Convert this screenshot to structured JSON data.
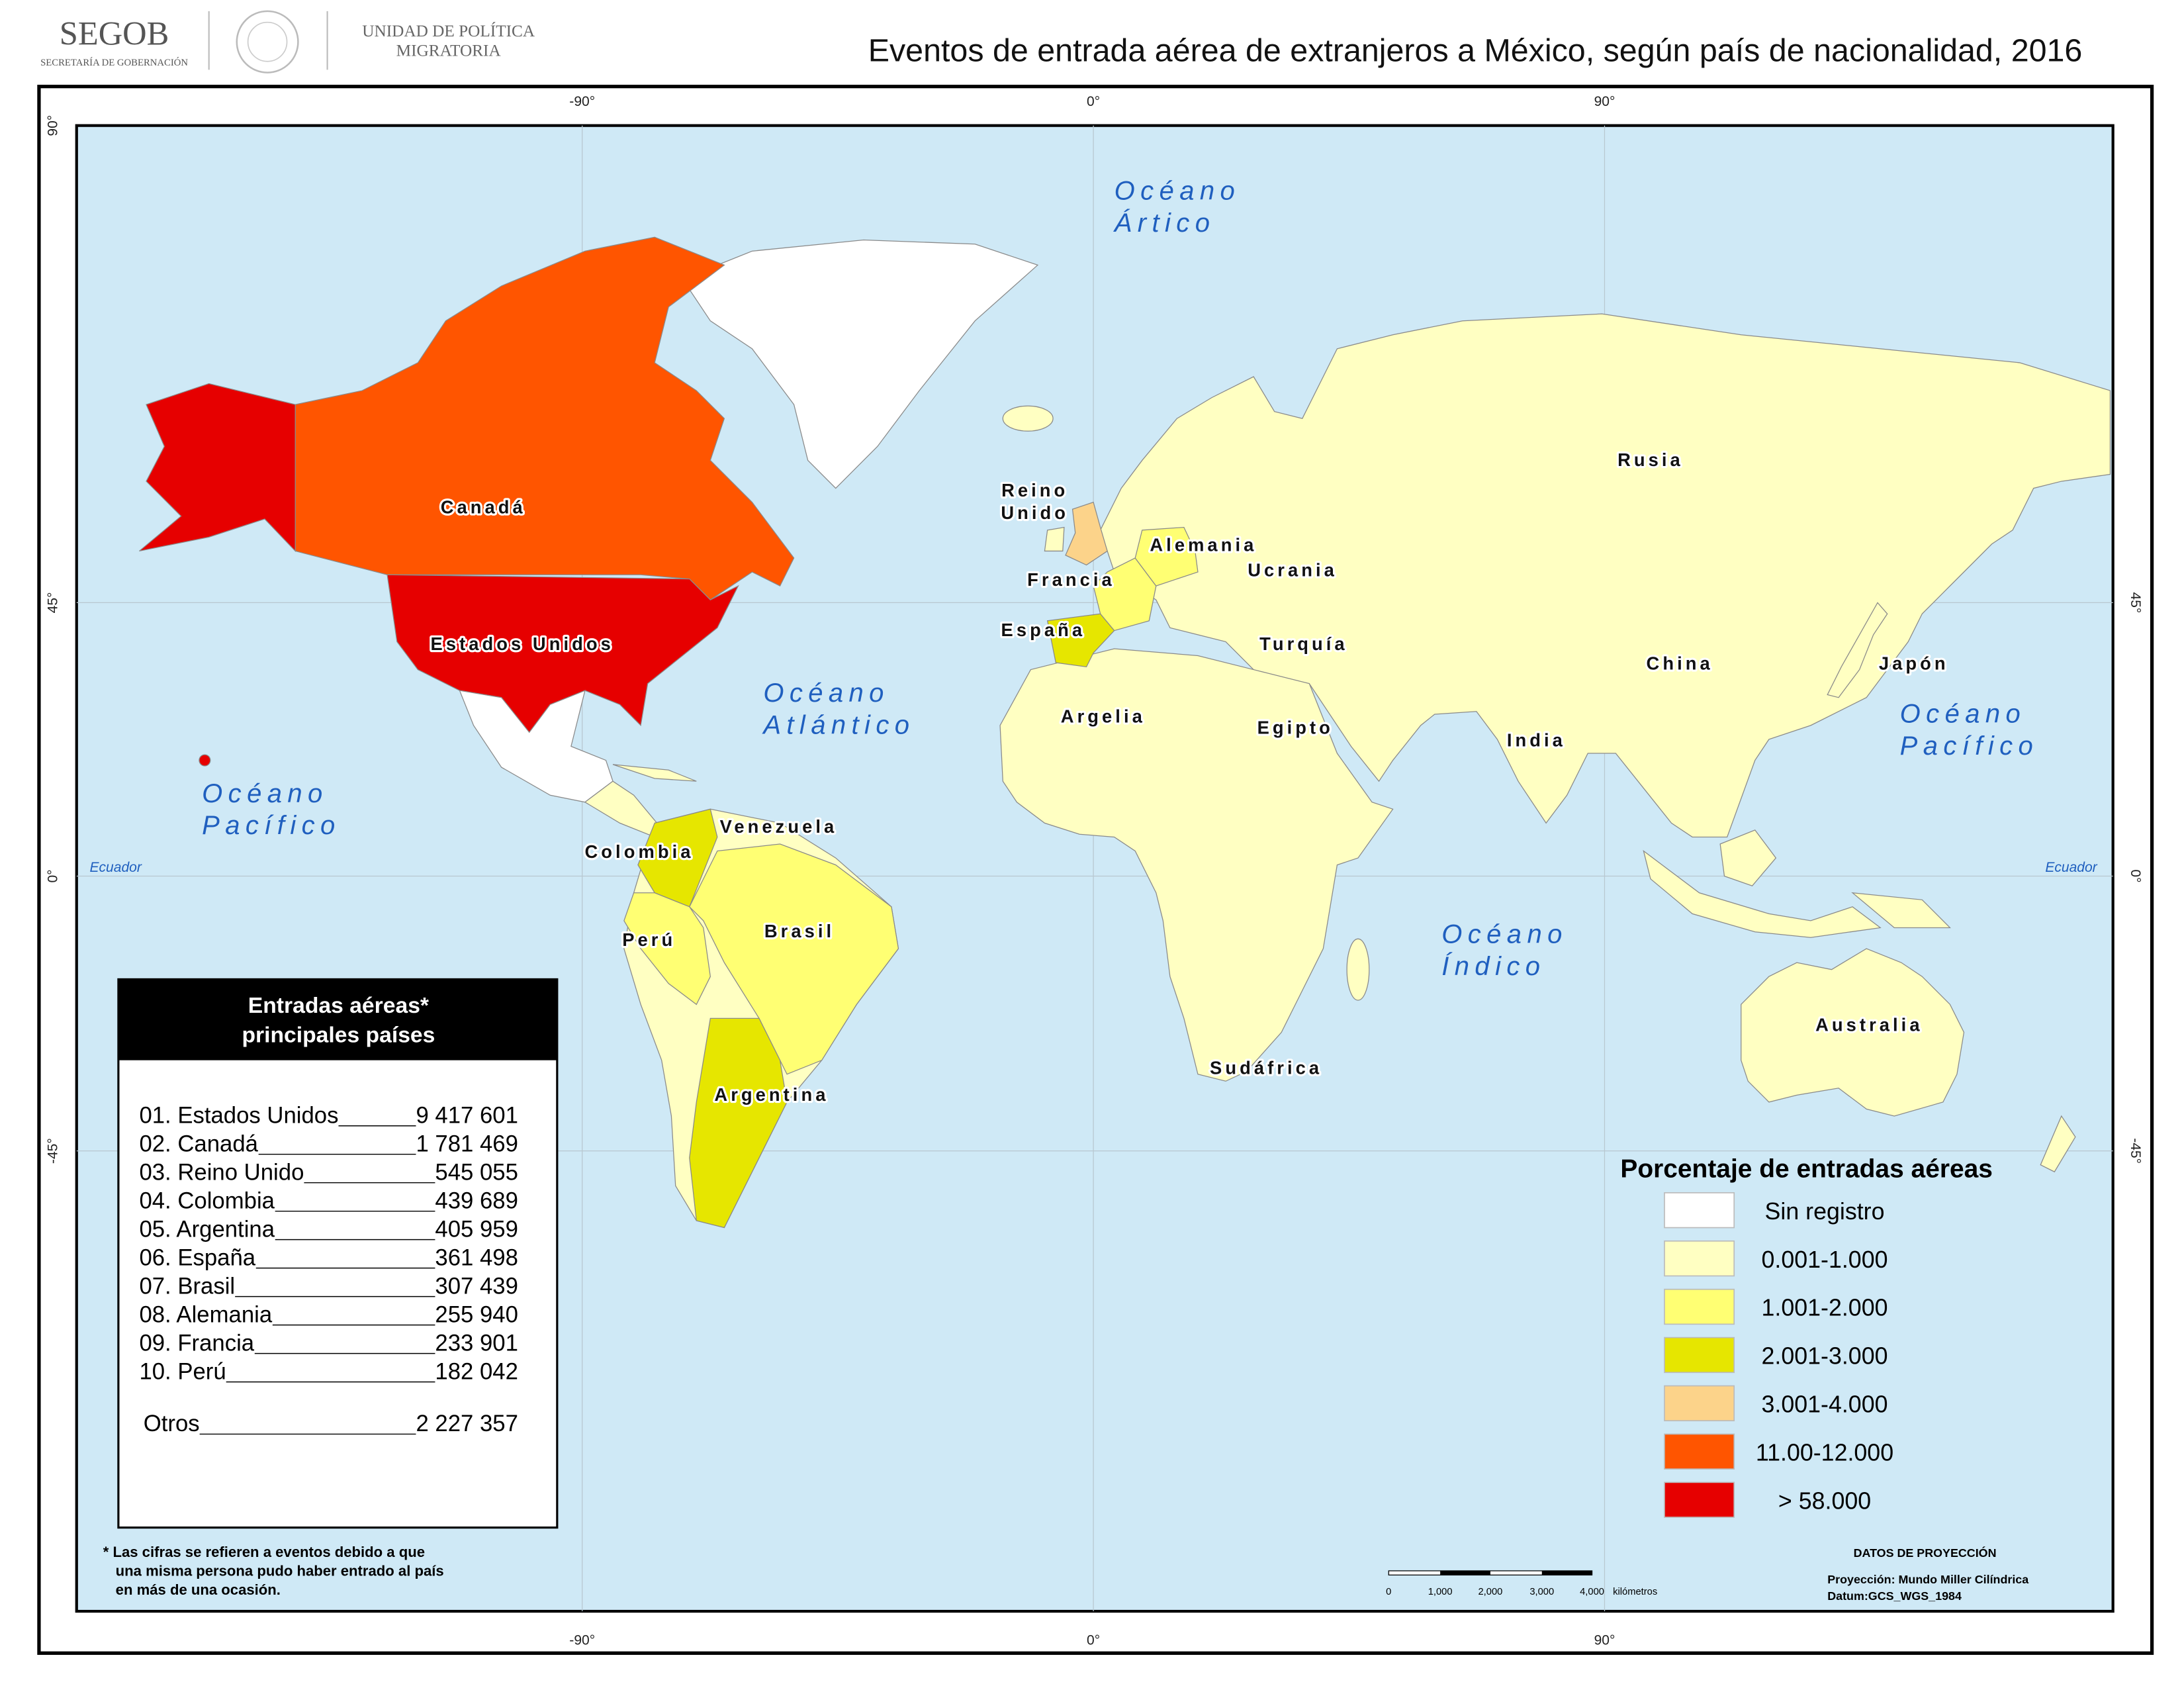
{
  "header": {
    "agency": "SEGOB",
    "agency_sub": "SECRETARÍA DE GOBERNACIÓN",
    "unit": [
      "UNIDAD DE POLÍTICA",
      "MIGRATORIA"
    ],
    "title": "Eventos de entrada aérea de extranjeros a México, según país de nacionalidad, 2016"
  },
  "graticule": {
    "meridians": [
      "-90°",
      "0°",
      "90°"
    ],
    "parallels": [
      "90°",
      "45°",
      "0°",
      "-45°"
    ],
    "equator": "Ecuador"
  },
  "oceans": [
    [
      "Océano",
      "Ártico"
    ],
    [
      "Océano",
      "Atlántico"
    ],
    [
      "Océano",
      "Pacífico"
    ],
    [
      "Océano",
      "Pacífico"
    ],
    [
      "Océano",
      "Índico"
    ]
  ],
  "country_labels": [
    "Canadá",
    "Estados Unidos",
    "Reino",
    "Unido",
    "Alemania",
    "Francia",
    "Ucrania",
    "España",
    "Turquía",
    "Rusia",
    "China",
    "Japón",
    "Argelia",
    "Egipto",
    "India",
    "Venezuela",
    "Colombia",
    "Perú",
    "Brasil",
    "Argentina",
    "Sudáfrica",
    "Australia"
  ],
  "table": {
    "title": [
      "Entradas aéreas*",
      "principales países"
    ],
    "rows": [
      {
        "name": "01. Estados Unidos",
        "value": "9 417 601"
      },
      {
        "name": "02. Canadá",
        "value": "1 781 469"
      },
      {
        "name": "03. Reino Unido",
        "value": "545 055"
      },
      {
        "name": "04. Colombia",
        "value": "439 689"
      },
      {
        "name": "05. Argentina",
        "value": "405 959"
      },
      {
        "name": "06. España",
        "value": "361 498"
      },
      {
        "name": "07. Brasil",
        "value": "307 439"
      },
      {
        "name": "08. Alemania",
        "value": "255 940"
      },
      {
        "name": "09. Francia",
        "value": "233 901"
      },
      {
        "name": "10. Perú",
        "value": "182 042"
      }
    ],
    "others": {
      "name": "Otros",
      "value": "2 227 357"
    }
  },
  "footnote": [
    "* Las cifras se refieren a eventos debido a que",
    "una misma persona pudo haber entrado al país",
    "en más de una ocasión."
  ],
  "legend": {
    "title": "Porcentaje de entradas aéreas",
    "items": [
      {
        "label": "Sin registro",
        "color": "#ffffff"
      },
      {
        "label": "0.001-1.000",
        "color": "#ffffc2"
      },
      {
        "label": "1.001-2.000",
        "color": "#ffff73"
      },
      {
        "label": "2.001-3.000",
        "color": "#e6e600"
      },
      {
        "label": "3.001-4.000",
        "color": "#fcd38a"
      },
      {
        "label": "11.00-12.000",
        "color": "#ff5500"
      },
      {
        "label": "> 58.000",
        "color": "#e60000"
      }
    ]
  },
  "scale_bar": {
    "ticks": [
      "0",
      "1,000",
      "2,000",
      "3,000",
      "4,000"
    ],
    "unit": "kilómetros"
  },
  "projection": {
    "title": "DATOS DE PROYECCIÓN",
    "lines": [
      "Proyección: Mundo Miller Cilíndrica",
      "Datum:GCS_WGS_1984"
    ]
  }
}
